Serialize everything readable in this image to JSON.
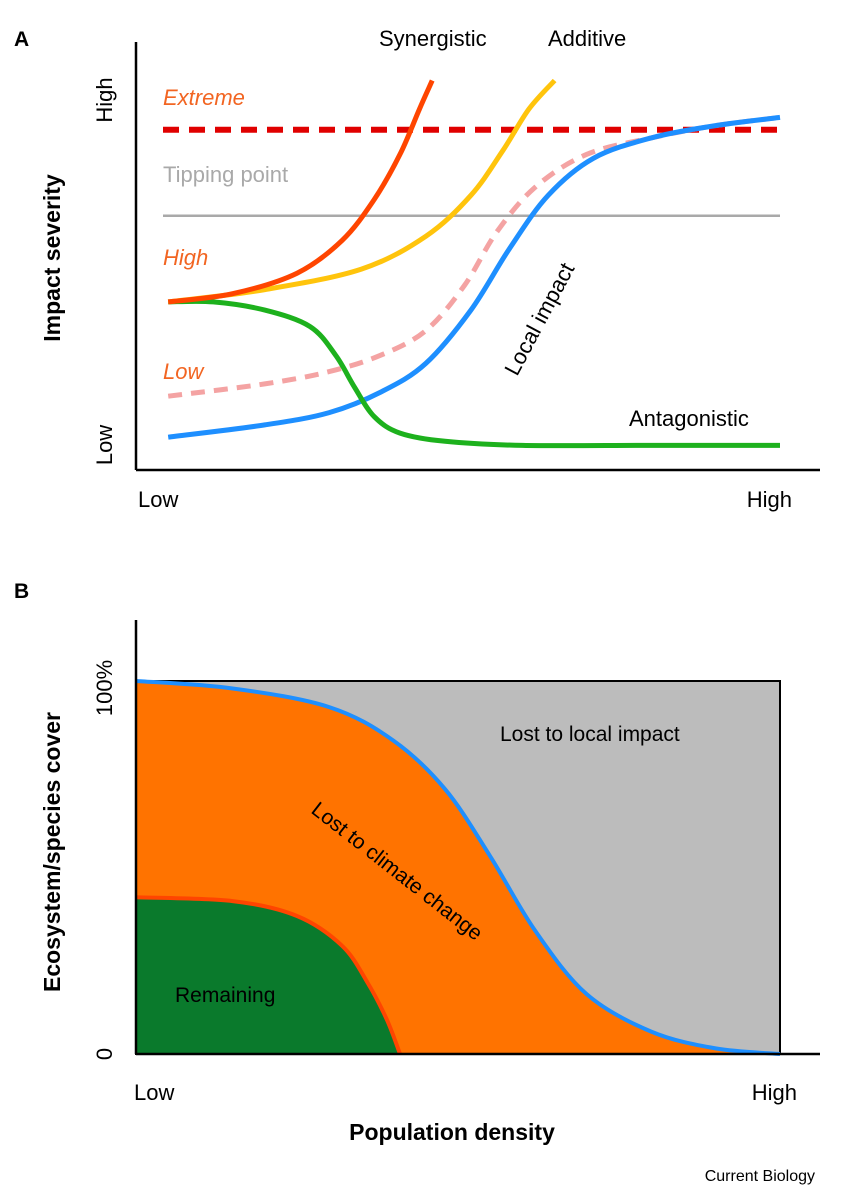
{
  "credit": "Current Biology",
  "colors": {
    "synergistic": "#ff4500",
    "additive": "#ffc40c",
    "antagonistic": "#1db11d",
    "local_impact": "#1e8fff",
    "low_dashed": "#f4a3a3",
    "extreme": "#e00000",
    "tipping_point": "#a9a9a9",
    "remaining": "#0a7a2c",
    "climate": "#ff7300",
    "local_lost": "#bcbcbc",
    "label_orange": "#f26522"
  },
  "chart_data": [
    {
      "panel": "A",
      "type": "line",
      "ylabel": "Impact severity",
      "x_ticks": [
        "Low",
        "High"
      ],
      "y_ticks": [
        "Low",
        "High"
      ],
      "xlim": [
        0,
        1
      ],
      "ylim": [
        0,
        1
      ],
      "thresholds": [
        {
          "label": "Extreme",
          "y": 0.83,
          "style": "dashed"
        },
        {
          "label": "Tipping point",
          "y": 0.62,
          "style": "solid"
        }
      ],
      "level_labels": [
        "High",
        "Low"
      ],
      "series": [
        {
          "name": "Synergistic",
          "x": [
            0.05,
            0.15,
            0.25,
            0.32,
            0.37,
            0.41,
            0.44,
            0.46
          ],
          "y": [
            0.41,
            0.43,
            0.48,
            0.56,
            0.66,
            0.77,
            0.88,
            0.95
          ]
        },
        {
          "name": "Additive",
          "x": [
            0.05,
            0.2,
            0.35,
            0.45,
            0.52,
            0.57,
            0.61,
            0.65
          ],
          "y": [
            0.41,
            0.44,
            0.49,
            0.57,
            0.67,
            0.78,
            0.88,
            0.95
          ]
        },
        {
          "name": "Antagonistic",
          "x": [
            0.05,
            0.12,
            0.2,
            0.27,
            0.31,
            0.34,
            0.37,
            0.41,
            0.48,
            0.6,
            0.8,
            1.0
          ],
          "y": [
            0.41,
            0.41,
            0.39,
            0.35,
            0.28,
            0.2,
            0.13,
            0.09,
            0.07,
            0.06,
            0.06,
            0.06
          ]
        },
        {
          "name": "Local impact",
          "x": [
            0.05,
            0.2,
            0.3,
            0.38,
            0.45,
            0.52,
            0.58,
            0.64,
            0.71,
            0.8,
            0.9,
            1.0
          ],
          "y": [
            0.08,
            0.11,
            0.14,
            0.19,
            0.26,
            0.39,
            0.54,
            0.67,
            0.76,
            0.81,
            0.84,
            0.86
          ]
        },
        {
          "name": "",
          "x": [
            0.05,
            0.2,
            0.3,
            0.38,
            0.45,
            0.51,
            0.56,
            0.62,
            0.7,
            0.8,
            0.9,
            1.0
          ],
          "y": [
            0.18,
            0.21,
            0.24,
            0.28,
            0.34,
            0.45,
            0.58,
            0.69,
            0.77,
            0.81,
            0.84,
            0.86
          ]
        }
      ]
    },
    {
      "panel": "B",
      "type": "area",
      "xlabel": "Population density",
      "ylabel": "Ecosystem/species cover",
      "x_ticks": [
        "Low",
        "High"
      ],
      "y_ticks": [
        "0",
        "100%"
      ],
      "xlim": [
        0,
        1
      ],
      "ylim": [
        0,
        100
      ],
      "series": [
        {
          "name": "Remaining",
          "x": [
            0,
            0.15,
            0.25,
            0.32,
            0.36,
            0.39,
            0.41
          ],
          "y": [
            42,
            41,
            37,
            29,
            19,
            9,
            0
          ]
        },
        {
          "name": "Lost to climate change",
          "x": [
            0,
            0.15,
            0.3,
            0.4,
            0.48,
            0.55,
            0.62,
            0.7,
            0.8,
            0.9,
            1.0
          ],
          "y": [
            100,
            98,
            93,
            84,
            71,
            53,
            33,
            16,
            6,
            1.5,
            0
          ]
        },
        {
          "name": "Lost to local impact",
          "x": [
            0,
            1.0
          ],
          "y": [
            100,
            100
          ]
        }
      ]
    }
  ]
}
